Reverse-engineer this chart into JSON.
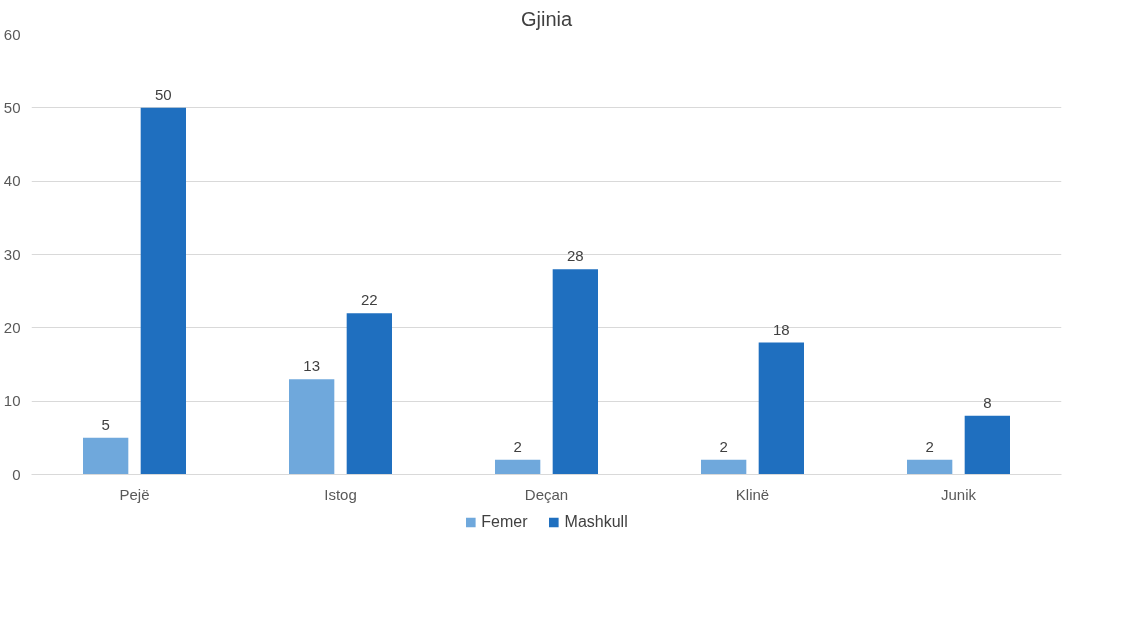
{
  "chart_data": {
    "type": "bar",
    "title": "Gjinia",
    "categories": [
      "Pejë",
      "Istog",
      "Deçan",
      "Klinë",
      "Junik"
    ],
    "series": [
      {
        "name": "Femer",
        "color": "#6fa8dc",
        "values": [
          5,
          13,
          2,
          2,
          2
        ]
      },
      {
        "name": "Mashkull",
        "color": "#1f6fbf",
        "values": [
          50,
          22,
          28,
          18,
          8
        ]
      }
    ],
    "ylim": [
      0,
      60
    ],
    "yticks": [
      0,
      10,
      20,
      30,
      40,
      50,
      60
    ],
    "grid": "y",
    "legend": "bottom",
    "data_labels": true
  }
}
